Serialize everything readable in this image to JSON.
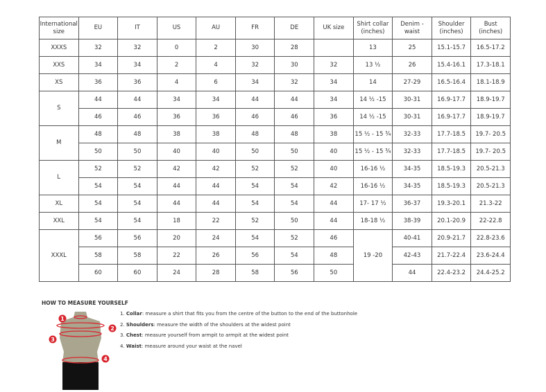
{
  "table": {
    "headers": [
      "International size",
      "EU",
      "IT",
      "US",
      "AU",
      "FR",
      "DE",
      "UK size",
      "Shirt collar (inches)",
      "Denim - waist",
      "Shoulder (inches)",
      "Bust (inches)"
    ],
    "groups": [
      {
        "size": "XXXS",
        "rows": [
          [
            "32",
            "32",
            "0",
            "2",
            "30",
            "28",
            "",
            "13",
            "25",
            "15.1-15.7",
            "16.5-17.2"
          ]
        ]
      },
      {
        "size": "XXS",
        "rows": [
          [
            "34",
            "34",
            "2",
            "4",
            "32",
            "30",
            "32",
            "13 ½",
            "26",
            "15.4-16.1",
            "17.3-18.1"
          ]
        ]
      },
      {
        "size": "XS",
        "rows": [
          [
            "36",
            "36",
            "4",
            "6",
            "34",
            "32",
            "34",
            "14",
            "27-29",
            "16.5-16.4",
            "18.1-18.9"
          ]
        ]
      },
      {
        "size": "S",
        "rows": [
          [
            "44",
            "44",
            "34",
            "34",
            "44",
            "44",
            "34",
            "14 ½ -15",
            "30-31",
            "16.9-17.7",
            "18.9-19.7"
          ],
          [
            "46",
            "46",
            "36",
            "36",
            "46",
            "46",
            "36",
            "14 ½ -15",
            "30-31",
            "16.9-17.7",
            "18.9-19.7"
          ]
        ]
      },
      {
        "size": "M",
        "rows": [
          [
            "48",
            "48",
            "38",
            "38",
            "48",
            "48",
            "38",
            "15 ½ - 15 ¾",
            "32-33",
            "17.7-18.5",
            "19.7- 20.5"
          ],
          [
            "50",
            "50",
            "40",
            "40",
            "50",
            "50",
            "40",
            "15 ½ - 15 ¾",
            "32-33",
            "17.7-18.5",
            "19.7- 20.5"
          ]
        ]
      },
      {
        "size": "L",
        "rows": [
          [
            "52",
            "52",
            "42",
            "42",
            "52",
            "52",
            "40",
            "16-16 ½",
            "34-35",
            "18.5-19.3",
            "20.5-21.3"
          ],
          [
            "54",
            "54",
            "44",
            "44",
            "54",
            "54",
            "42",
            "16-16 ½",
            "34-35",
            "18.5-19.3",
            "20.5-21.3"
          ]
        ]
      },
      {
        "size": "XL",
        "rows": [
          [
            "54",
            "54",
            "44",
            "44",
            "54",
            "54",
            "44",
            "17- 17 ½",
            "36-37",
            "19.3-20.1",
            "21.3-22"
          ]
        ]
      },
      {
        "size": "XXL",
        "rows": [
          [
            "54",
            "54",
            "18",
            "22",
            "52",
            "50",
            "44",
            "18-18 ½",
            "38-39",
            "20.1-20.9",
            "22-22.8"
          ]
        ]
      },
      {
        "size": "XXXL",
        "collar": "19 -20",
        "rows": [
          [
            "56",
            "56",
            "20",
            "24",
            "54",
            "52",
            "46",
            "",
            "40-41",
            "20.9-21.7",
            "22.8-23.6"
          ],
          [
            "58",
            "58",
            "22",
            "26",
            "56",
            "54",
            "48",
            "",
            "42-43",
            "21.7-22.4",
            "23.6-24.4"
          ],
          [
            "60",
            "60",
            "24",
            "28",
            "58",
            "56",
            "50",
            "",
            "44",
            "22.4-23.2",
            "24.4-25.2"
          ]
        ]
      }
    ]
  },
  "measure": {
    "title": "HOW TO MEASURE YOURSELF",
    "items": [
      {
        "num": "1.",
        "term": "Collar",
        "text": ": measure a shirt that fits you from the centre of the button to the end of the buttonhole"
      },
      {
        "num": "2.",
        "term": "Shoulders",
        "text": ": measure the width of the shoulders at the widest point"
      },
      {
        "num": "3.",
        "term": "Chest",
        "text": ": measure yourself from armpit to armpit at the widest point"
      },
      {
        "num": "4.",
        "term": "Waist",
        "text": ": measure around your waist at the navel"
      }
    ],
    "markers": [
      "1",
      "2",
      "3",
      "4"
    ],
    "accent": "#d9262f"
  }
}
